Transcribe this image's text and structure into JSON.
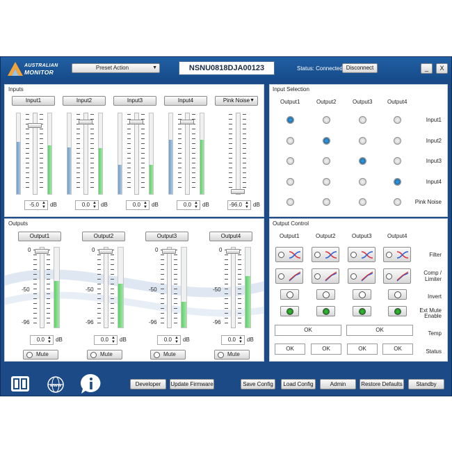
{
  "header": {
    "logo_line1": "AUSTRALIAN",
    "logo_line2": "MONITOR",
    "preset_label": "Preset Action",
    "serial": "NSNU0818DJA00123",
    "status": "Status: Connected",
    "disconnect": "Disconnect",
    "minimize": "_",
    "close": "X"
  },
  "inputs": {
    "title": "Inputs",
    "channels": [
      {
        "label": "Input1",
        "value": "-5.0",
        "level": 0.65,
        "peak": 0.6,
        "fader": 0.86
      },
      {
        "label": "Input2",
        "value": "0.0",
        "level": 0.58,
        "peak": 0.57,
        "fader": 0.91
      },
      {
        "label": "Input3",
        "value": "0.0",
        "level": 0.36,
        "peak": 0.36,
        "fader": 0.91
      },
      {
        "label": "Input4",
        "value": "0.0",
        "level": 0.67,
        "peak": 0.67,
        "fader": 0.91
      },
      {
        "label": "Pink Noise",
        "value": "-96.0",
        "level": 0,
        "peak": 0,
        "fader": 0
      }
    ],
    "unit": "dB"
  },
  "input_selection": {
    "title": "Input Selection",
    "outputs": [
      "Output1",
      "Output2",
      "Output3",
      "Output4"
    ],
    "rows": [
      "Input1",
      "Input2",
      "Input3",
      "Input4",
      "Pink Noise"
    ],
    "selected": [
      0,
      1,
      2,
      3
    ]
  },
  "outputs": {
    "title": "Outputs",
    "scale": [
      "0",
      "-50",
      "-96"
    ],
    "channels": [
      {
        "label": "Output1",
        "value": "0.0",
        "level": 0.58
      },
      {
        "label": "Output2",
        "value": "0.0",
        "level": 0.55
      },
      {
        "label": "Output3",
        "value": "0.0",
        "level": 0.32
      },
      {
        "label": "Output4",
        "value": "0.0",
        "level": 0.64
      }
    ],
    "mute": "Mute",
    "unit": "dB"
  },
  "output_control": {
    "title": "Output Control",
    "outputs": [
      "Output1",
      "Output2",
      "Output3",
      "Output4"
    ],
    "rows": {
      "filter": "Filter",
      "comp": "Comp /",
      "comp2": "Limiter",
      "invert": "Invert",
      "extmute": "Ext Mute",
      "extmute2": "Enable",
      "temp": "Temp",
      "status": "Status"
    },
    "temp_values": [
      "OK",
      "OK"
    ],
    "status_values": [
      "OK",
      "OK",
      "OK",
      "OK"
    ],
    "colors": {
      "filter_red": "#e0303a",
      "filter_blue": "#2a62d8",
      "comp_red": "#d83030",
      "comp_blue": "#2a5ad8",
      "led_green": "#129012"
    }
  },
  "footer": {
    "buttons": [
      "Developer",
      "Update Firmware",
      "Save Config",
      "Load Config",
      "Admin",
      "Restore Defaults",
      "Standby"
    ],
    "icons": [
      "manual-book-icon",
      "www-globe-icon",
      "info-icon"
    ]
  }
}
